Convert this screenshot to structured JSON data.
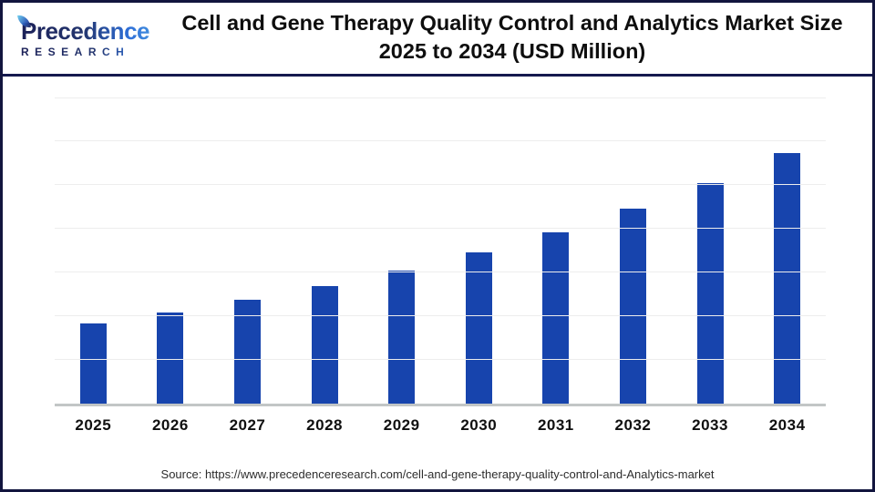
{
  "brand": {
    "name": "Precedence",
    "subname": "RESEARCH",
    "color_dark_navy": "#1c2158",
    "color_blue": "#2e6fd8"
  },
  "header": {
    "title_line1": "Cell and Gene Therapy Quality Control and Analytics Market Size",
    "title_line2": "2025 to 2034 (USD Million)"
  },
  "footer": {
    "source_text": "Source: https://www.precedenceresearch.com/cell-and-gene-therapy-quality-control-and-Analytics-market"
  },
  "chart_data": {
    "type": "bar",
    "title": "Cell and Gene Therapy Quality Control and Analytics Market Size 2025 to 2034 (USD Million)",
    "categories": [
      "2025",
      "2026",
      "2027",
      "2028",
      "2029",
      "2030",
      "2031",
      "2032",
      "2033",
      "2034"
    ],
    "values": [
      921,
      1045,
      1185,
      1344,
      1525,
      1729,
      1962,
      2225,
      2524,
      2862
    ],
    "values_note": "estimated from gridlines; bars carry no data labels in the image",
    "xlabel": "",
    "ylabel": "",
    "ylim": [
      0,
      3500
    ],
    "gridline_step": 500,
    "grid": true,
    "y_tick_labels_shown": false,
    "legend": false,
    "bar_color": "#1744ad",
    "axis_line_color": "#c2c6c6",
    "gridline_color": "#ededed"
  }
}
